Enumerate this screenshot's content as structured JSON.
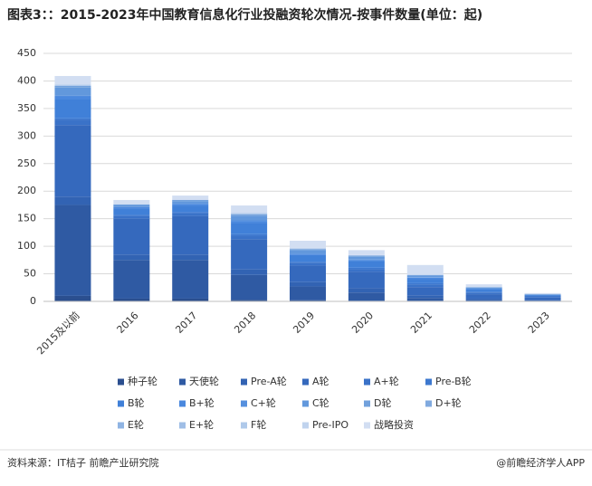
{
  "chart_data": {
    "type": "stacked-bar",
    "title": "图表3：：2015-2023年中国教育信息化行业投融资轮次情况-按事件数量(单位：起)",
    "source": "资料来源：IT桔子 前瞻产业研究院",
    "brand": "@前瞻经济学人APP",
    "categories": [
      "2015及以前",
      "2016",
      "2017",
      "2018",
      "2019",
      "2020",
      "2021",
      "2022",
      "2023"
    ],
    "ylim": [
      0,
      450
    ],
    "yticks": [
      0,
      50,
      100,
      150,
      200,
      250,
      300,
      350,
      400,
      450
    ],
    "grid": true,
    "series": [
      {
        "name": "种子轮",
        "color": "#2b4f8f",
        "values": [
          10,
          5,
          5,
          3,
          2,
          1,
          1,
          0,
          0
        ]
      },
      {
        "name": "天使轮",
        "color": "#2f5aa3",
        "values": [
          165,
          70,
          70,
          45,
          25,
          15,
          5,
          2,
          1
        ]
      },
      {
        "name": "Pre-A轮",
        "color": "#3263b3",
        "values": [
          15,
          10,
          10,
          10,
          8,
          8,
          5,
          3,
          2
        ]
      },
      {
        "name": "A轮",
        "color": "#3569bd",
        "values": [
          130,
          65,
          70,
          55,
          30,
          30,
          15,
          8,
          4
        ]
      },
      {
        "name": "A+轮",
        "color": "#3a72c8",
        "values": [
          10,
          5,
          5,
          6,
          5,
          5,
          5,
          3,
          2
        ]
      },
      {
        "name": "Pre-B轮",
        "color": "#3d78cf",
        "values": [
          2,
          2,
          2,
          3,
          2,
          2,
          2,
          1,
          1
        ]
      },
      {
        "name": "B轮",
        "color": "#4080d8",
        "values": [
          35,
          12,
          12,
          20,
          12,
          12,
          8,
          5,
          2
        ]
      },
      {
        "name": "B+轮",
        "color": "#4a88de",
        "values": [
          5,
          2,
          3,
          4,
          2,
          2,
          2,
          1,
          0
        ]
      },
      {
        "name": "C+轮",
        "color": "#5690de",
        "values": [
          1,
          0,
          0,
          1,
          1,
          1,
          1,
          0,
          0
        ]
      },
      {
        "name": "C轮",
        "color": "#6298dc",
        "values": [
          15,
          4,
          5,
          8,
          6,
          5,
          3,
          2,
          1
        ]
      },
      {
        "name": "D轮",
        "color": "#72a1dc",
        "values": [
          3,
          1,
          2,
          3,
          2,
          2,
          1,
          1,
          0
        ]
      },
      {
        "name": "D+轮",
        "color": "#80aadf",
        "values": [
          0,
          0,
          0,
          0,
          0,
          0,
          0,
          0,
          0
        ]
      },
      {
        "name": "E轮",
        "color": "#8fb4e3",
        "values": [
          1,
          0,
          0,
          1,
          0,
          0,
          0,
          0,
          0
        ]
      },
      {
        "name": "E+轮",
        "color": "#9fbee6",
        "values": [
          0,
          0,
          0,
          0,
          0,
          0,
          0,
          0,
          0
        ]
      },
      {
        "name": "F轮",
        "color": "#afc9ea",
        "values": [
          0,
          0,
          0,
          0,
          0,
          0,
          0,
          0,
          0
        ]
      },
      {
        "name": "Pre-IPO",
        "color": "#c0d3ee",
        "values": [
          2,
          1,
          1,
          2,
          2,
          1,
          1,
          0,
          0
        ]
      },
      {
        "name": "战略投资",
        "color": "#d2def2",
        "values": [
          15,
          7,
          7,
          13,
          13,
          9,
          17,
          5,
          2
        ]
      }
    ]
  }
}
